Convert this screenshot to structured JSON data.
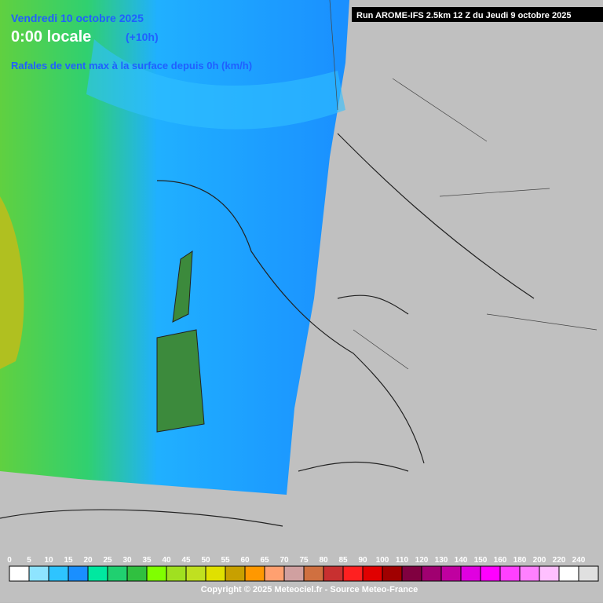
{
  "header": {
    "date": "Vendredi 10 octobre 2025",
    "time": "0:00 locale",
    "offset": "(+10h)",
    "parameter": "Rafales de vent max à la surface depuis 0h (km/h)",
    "run": "Run AROME-IFS 2.5km 12 Z du Jeudi 9 octobre 2025"
  },
  "legend": {
    "ticks": [
      0,
      5,
      10,
      15,
      20,
      25,
      30,
      35,
      40,
      45,
      50,
      55,
      60,
      65,
      70,
      75,
      80,
      85,
      90,
      100,
      110,
      120,
      130,
      140,
      150,
      160,
      180,
      200,
      220,
      240
    ],
    "colors": [
      "#ffffff",
      "#8ee4ff",
      "#2ec4ff",
      "#1a8fff",
      "#00e8a0",
      "#20d070",
      "#30c040",
      "#80ff00",
      "#a0e020",
      "#c0e020",
      "#e0e000",
      "#c8a000",
      "#ff9800",
      "#ffa070",
      "#d0a0a0",
      "#d07040",
      "#c83030",
      "#ff2020",
      "#e00000",
      "#a00000",
      "#800040",
      "#a00070",
      "#c000a0",
      "#e000e0",
      "#ff00ff",
      "#ff40ff",
      "#ff80ff",
      "#ffc0ff",
      "#ffffff",
      "#e0e0e0"
    ]
  },
  "footer": {
    "copyright": "Copyright © 2025 Meteociel.fr - Source Meteo-France"
  }
}
